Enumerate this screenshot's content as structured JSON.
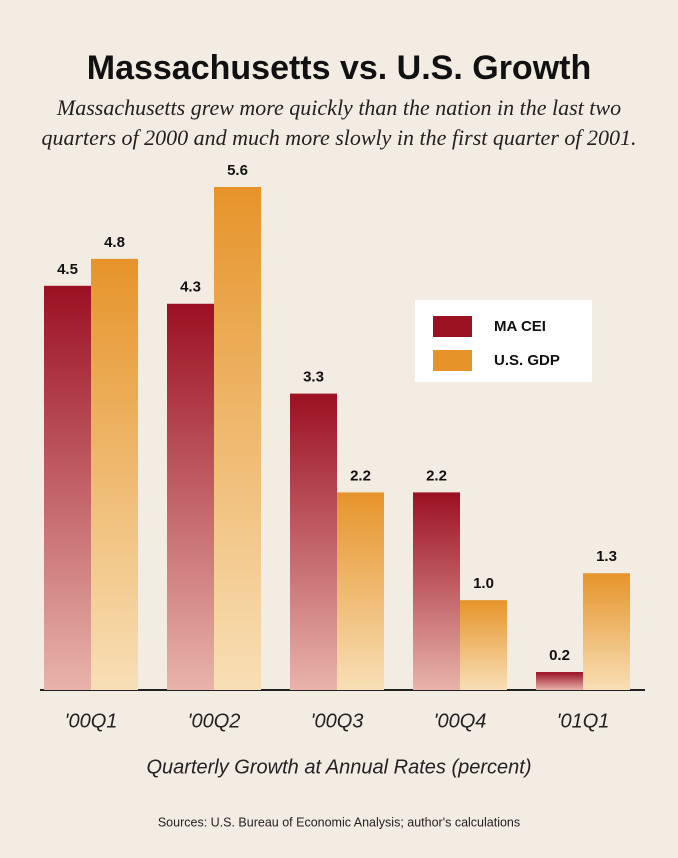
{
  "chart_data": {
    "type": "bar",
    "title": "Massachusetts vs. U.S. Growth",
    "subtitle": [
      "Massachusetts grew more quickly than the nation in the last two",
      "quarters of 2000 and much more slowly in the first quarter of 2001."
    ],
    "categories": [
      "'00Q1",
      "'00Q2",
      "'00Q3",
      "'00Q4",
      "'01Q1"
    ],
    "series": [
      {
        "name": "MA CEI",
        "color": "#9b1022",
        "values": [
          4.5,
          4.3,
          3.3,
          2.2,
          0.2
        ],
        "value_labels": [
          "4.5",
          "4.3",
          "3.3",
          "2.2",
          "0.2"
        ]
      },
      {
        "name": "U.S. GDP",
        "color": "#e6942a",
        "values": [
          4.8,
          5.6,
          2.2,
          1.0,
          1.3
        ],
        "value_labels": [
          "4.8",
          "5.6",
          "2.2",
          "1.0",
          "1.3"
        ]
      }
    ],
    "xlabel": "Quarterly Growth at Annual Rates (percent)",
    "source": "Sources: U.S. Bureau of Economic Analysis; author's calculations",
    "legend": "upper right"
  }
}
